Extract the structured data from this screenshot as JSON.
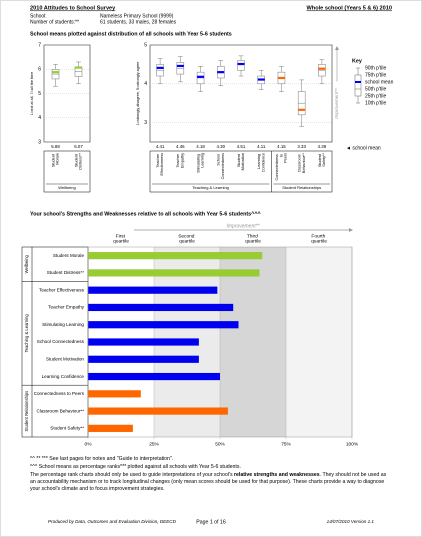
{
  "header": {
    "title": "2010 Attitudes to School Survey",
    "scope": "Whole school (Years 5 & 6) 2010",
    "school_label": "School:",
    "school": "Nameless Primary School (9999)",
    "students_label": "Number of students:**",
    "students": "61 students, 33 males, 28 females"
  },
  "section_1_title": "School means plotted against distribution of all schools with Year 5-6 students",
  "key": {
    "title": "Key",
    "entries": [
      "90th p'tile",
      "75th p'tile",
      "school mean",
      "50th p'tile",
      "25th p'tile",
      "10th p'tile"
    ],
    "mean_pointer": "◄ school mean"
  },
  "section_2_title": "Your school's Strengths and Weaknesses relative to all schools with Year 5-6 students^^^",
  "chart_data": [
    {
      "type": "box",
      "y_label": "1=not at all, 7=all the time",
      "ylim": [
        3,
        7
      ],
      "yticks": [
        3,
        4,
        5,
        6,
        7
      ],
      "groups": [
        {
          "name": "Wellbeing",
          "color": "#99cc33",
          "items": [
            {
              "name": "Student Morale",
              "mean": 5.88,
              "p10": 5.3,
              "p25": 5.6,
              "p50": 5.8,
              "p75": 6.0,
              "p90": 6.2
            },
            {
              "name": "Student Distress**",
              "mean": 6.07,
              "p10": 5.4,
              "p25": 5.7,
              "p50": 5.9,
              "p75": 6.1,
              "p90": 6.3
            }
          ]
        }
      ]
    },
    {
      "type": "box",
      "y_label": "1=strongly disagree, 5=strongly agree",
      "improvement": "Improvement**",
      "ylim": [
        2.5,
        5
      ],
      "yticks": [
        3,
        4,
        5
      ],
      "groups": [
        {
          "name": "Teaching & Learning",
          "color": "#0000ff",
          "items": [
            {
              "name": "Teacher Effectiveness",
              "mean": 4.41,
              "p10": 4.0,
              "p25": 4.2,
              "p50": 4.35,
              "p75": 4.5,
              "p90": 4.65
            },
            {
              "name": "Teacher Empathy",
              "mean": 4.46,
              "p10": 4.05,
              "p25": 4.25,
              "p50": 4.4,
              "p75": 4.55,
              "p90": 4.7
            },
            {
              "name": "Stimulating Learning",
              "mean": 4.18,
              "p10": 3.8,
              "p25": 4.0,
              "p50": 4.15,
              "p75": 4.3,
              "p90": 4.45
            },
            {
              "name": "School Connectedness",
              "mean": 4.3,
              "mean_label": "4.30",
              "p10": 3.95,
              "p25": 4.15,
              "p50": 4.3,
              "p75": 4.45,
              "p90": 4.6
            },
            {
              "name": "Student Motivation",
              "mean": 4.51,
              "p10": 4.2,
              "p25": 4.35,
              "p50": 4.5,
              "p75": 4.6,
              "p90": 4.72
            },
            {
              "name": "Learning Confidence",
              "mean": 4.11,
              "p10": 3.85,
              "p25": 4.0,
              "p50": 4.1,
              "p75": 4.2,
              "p90": 4.35
            }
          ]
        },
        {
          "name": "Student Relationships",
          "color": "#ff6600",
          "items": [
            {
              "name": "Connectedness to Peers",
              "mean": 4.15,
              "p10": 3.8,
              "p25": 4.0,
              "p50": 4.15,
              "p75": 4.3,
              "p90": 4.45
            },
            {
              "name": "Classroom Behaviour**",
              "mean": 3.33,
              "p10": 2.9,
              "p25": 3.2,
              "p50": 3.5,
              "p75": 3.8,
              "p90": 4.1
            },
            {
              "name": "Student Safety**",
              "mean": 4.39,
              "p10": 4.0,
              "p25": 4.2,
              "p50": 4.35,
              "p75": 4.5,
              "p90": 4.62
            }
          ]
        }
      ]
    },
    {
      "type": "bar",
      "orientation": "horizontal",
      "improvement": "Improvement**",
      "quartiles": [
        "First quartile",
        "Second quartile",
        "Third quartile",
        "Fourth quartile"
      ],
      "xlim": [
        0,
        100
      ],
      "xticks": [
        {
          "value": 0,
          "label": "0%"
        },
        {
          "value": 25,
          "label": "25%"
        },
        {
          "value": 50,
          "label": "50%"
        },
        {
          "value": 75,
          "label": "75%"
        },
        {
          "value": 100,
          "label": "100%"
        }
      ],
      "groups": [
        {
          "name": "Wellbeing",
          "color": "#99cc33",
          "items": [
            {
              "name": "Student Morale",
              "value": 66
            },
            {
              "name": "Student Distress**",
              "value": 65
            }
          ]
        },
        {
          "name": "Teaching & Learning",
          "color": "#0000ee",
          "items": [
            {
              "name": "Teacher Effectiveness",
              "value": 49
            },
            {
              "name": "Teacher Empathy",
              "value": 55
            },
            {
              "name": "Stimulating Learning",
              "value": 57
            },
            {
              "name": "School Connectedness",
              "value": 42
            },
            {
              "name": "Student Motivation",
              "value": 42
            },
            {
              "name": "Learning Confidence",
              "value": 50
            }
          ]
        },
        {
          "name": "Student Relationships",
          "color": "#ff6600",
          "items": [
            {
              "name": "Connectedness to Peers",
              "value": 20
            },
            {
              "name": "Classroom Behaviour**",
              "value": 53
            },
            {
              "name": "Student Safety**",
              "value": 17
            }
          ]
        }
      ]
    }
  ],
  "notes": [
    "^^ ** *** See last pages for notes and \"Guide to interpretation\".",
    "^^^ School means as percentage ranks*** plotted against all schools with Year 5-6 students."
  ],
  "paragraph": {
    "before": "The percentage rank charts should only be used to guide interpretations of your school's ",
    "bold": "relative strengths and weaknesses",
    "after": ". They should not be used as an accountability mechanism or to track longitudinal changes (only mean scores should be used for that purpose). These charts provide a way to diagnose your school's climate and to focus improvement strategies."
  },
  "footer": {
    "producer": "Produced by Data, Outcomes and Evaluation Division, DEECD",
    "page": "Page 1 of 16",
    "version": "14/07/2010 Version 1.1"
  }
}
